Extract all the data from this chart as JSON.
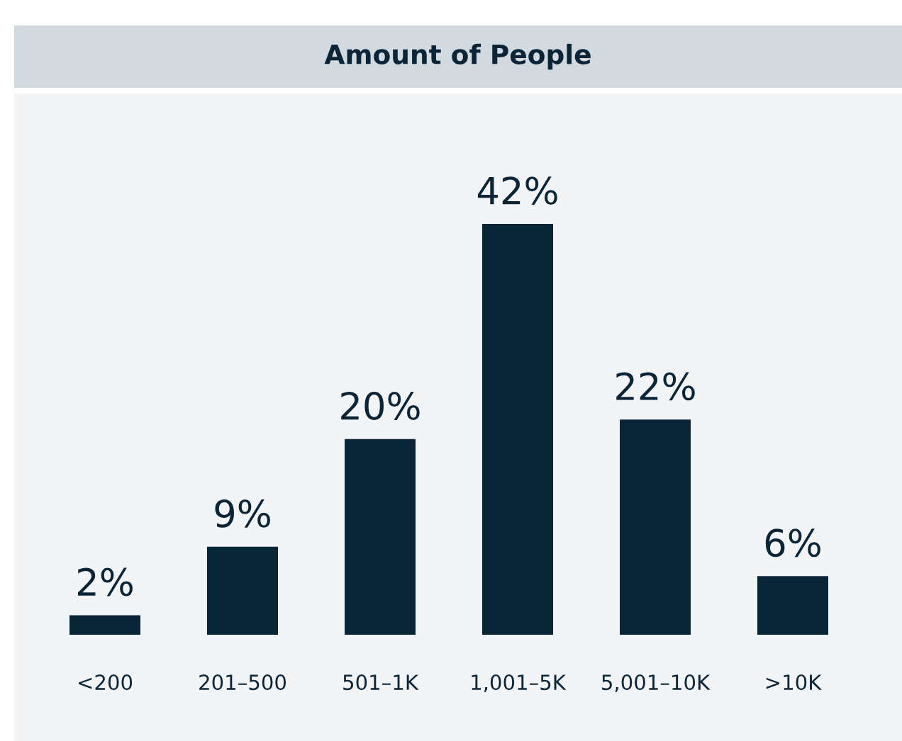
{
  "chart_data": {
    "type": "bar",
    "title": "Amount of People",
    "categories": [
      "<200",
      "201–500",
      "501–1K",
      "1,001–5K",
      "5,001–10K",
      ">10K"
    ],
    "values": [
      2,
      9,
      20,
      42,
      22,
      6
    ],
    "value_labels": [
      "2%",
      "9%",
      "20%",
      "42%",
      "22%",
      "6%"
    ],
    "color": "#0b2538",
    "grid": false,
    "legend": false
  }
}
